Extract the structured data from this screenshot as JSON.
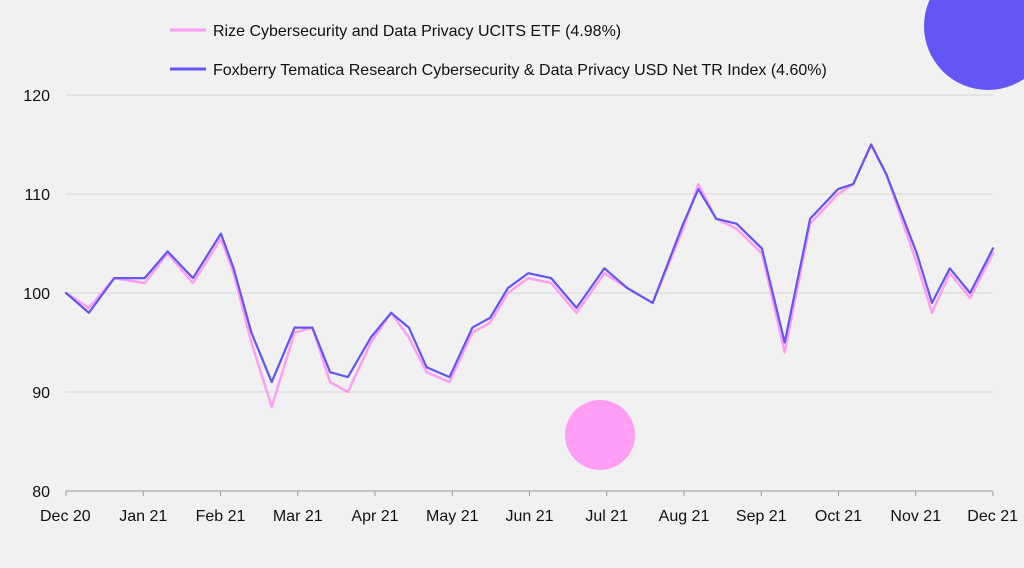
{
  "chart_data": {
    "type": "line",
    "title": "",
    "xlabel": "",
    "ylabel": "",
    "ylim": [
      80,
      120
    ],
    "yticks": [
      80,
      90,
      100,
      110,
      120
    ],
    "grid": true,
    "legend_position": "top",
    "x_tick_labels": [
      "Dec 20",
      "Jan 21",
      "Feb 21",
      "Mar 21",
      "Apr 21",
      "May 21",
      "Jun 21",
      "Jul 21",
      "Aug 21",
      "Sep 21",
      "Oct 21",
      "Nov 21",
      "Dec 21"
    ],
    "x": [
      "2020-12-01",
      "2020-12-10",
      "2020-12-20",
      "2021-01-01",
      "2021-01-10",
      "2021-01-20",
      "2021-01-31",
      "2021-02-05",
      "2021-02-12",
      "2021-02-20",
      "2021-03-01",
      "2021-03-08",
      "2021-03-15",
      "2021-03-22",
      "2021-03-31",
      "2021-04-08",
      "2021-04-15",
      "2021-04-22",
      "2021-05-01",
      "2021-05-10",
      "2021-05-17",
      "2021-05-24",
      "2021-06-01",
      "2021-06-10",
      "2021-06-20",
      "2021-07-01",
      "2021-07-10",
      "2021-07-20",
      "2021-08-01",
      "2021-08-07",
      "2021-08-14",
      "2021-08-22",
      "2021-09-01",
      "2021-09-10",
      "2021-09-20",
      "2021-10-01",
      "2021-10-07",
      "2021-10-14",
      "2021-10-20",
      "2021-11-01",
      "2021-11-07",
      "2021-11-14",
      "2021-11-22",
      "2021-12-01"
    ],
    "series": [
      {
        "name": "Rize Cybersecurity and Data Privacy UCITS ETF (4.98%)",
        "color": "#ff9ef4",
        "values": [
          100,
          98.5,
          101.5,
          101,
          104,
          101,
          105.5,
          102,
          95,
          88.5,
          96,
          96.5,
          91,
          90,
          95,
          98,
          95.5,
          92,
          91,
          96,
          97,
          100,
          101.5,
          101,
          98,
          102,
          100.5,
          99,
          106.5,
          111,
          107.5,
          106.5,
          104,
          94,
          107,
          110,
          111,
          115,
          112,
          103,
          98,
          102,
          99.5,
          104
        ]
      },
      {
        "name": "Foxberry Tematica Research Cybersecurity & Data Privacy USD Net TR Index (4.60%)",
        "color": "#6256f5",
        "values": [
          100,
          98,
          101.5,
          101.5,
          104.2,
          101.5,
          106,
          102.5,
          96,
          91,
          96.5,
          96.5,
          92,
          91.5,
          95.5,
          98,
          96.5,
          92.5,
          91.5,
          96.5,
          97.5,
          100.5,
          102,
          101.5,
          98.5,
          102.5,
          100.5,
          99,
          107,
          110.5,
          107.5,
          107,
          104.5,
          95,
          107.5,
          110.5,
          111,
          115,
          112,
          104,
          99,
          102.5,
          100,
          104.5
        ]
      }
    ]
  },
  "decor": {
    "blue_circle_color": "#6256f5",
    "pink_circle_color": "#ff9ef4"
  }
}
